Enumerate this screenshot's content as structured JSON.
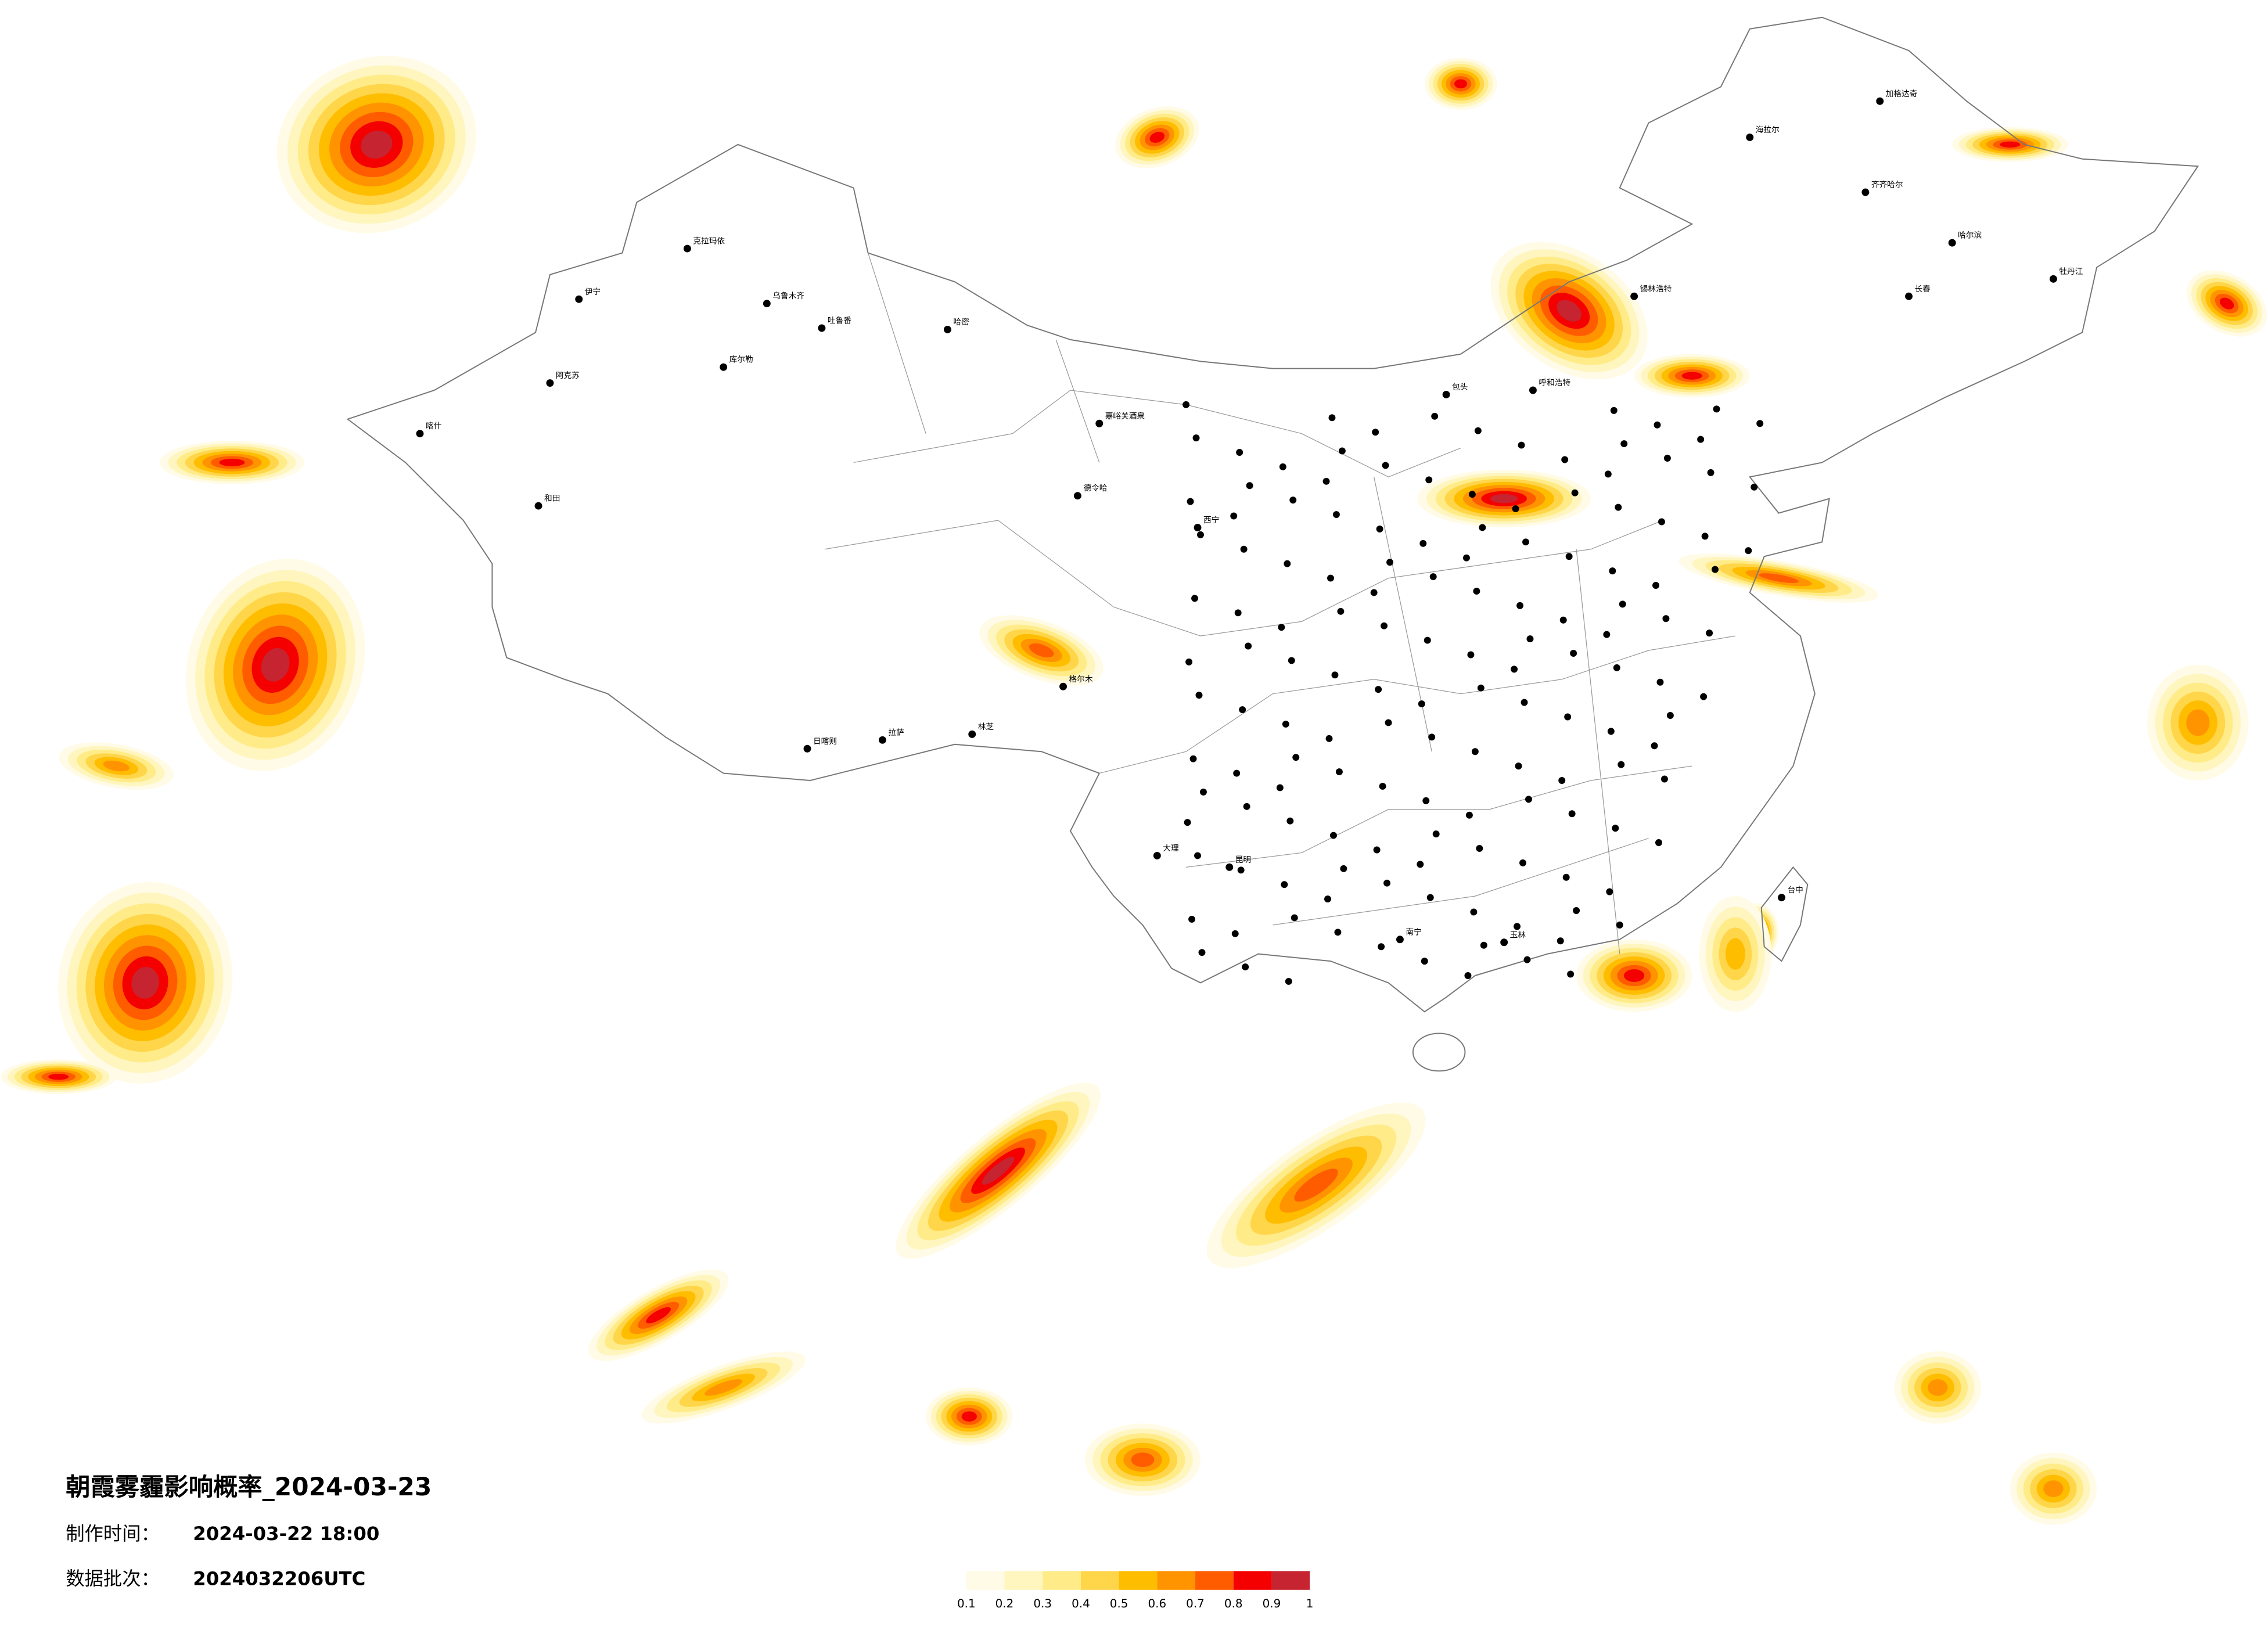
{
  "header": {
    "title": "朝霞雾霾影响概率_2024-03-23",
    "make_time_label": "制作时间：",
    "make_time": "2024-03-22 18:00",
    "batch_label": "数据批次：",
    "batch": "2024032206UTC"
  },
  "legend": {
    "ticks": [
      0.1,
      0.2,
      0.3,
      0.4,
      0.5,
      0.6,
      0.7,
      0.8,
      0.9,
      1
    ],
    "colors": [
      "#fffbe6",
      "#fff5bf",
      "#ffec88",
      "#ffd54a",
      "#ffbd00",
      "#ff9400",
      "#ff5c00",
      "#f40000",
      "#c62430"
    ]
  },
  "map": {
    "cities": [
      "克拉玛依",
      "乌鲁木齐",
      "伊宁",
      "库尔勒",
      "阿克苏",
      "和田",
      "喀什",
      "哈密",
      "吐鲁番",
      "拉萨",
      "日喀则",
      "林芝",
      "格尔木",
      "德令哈",
      "嘉峪关酒泉",
      "西宁",
      "呼和浩特",
      "包头",
      "锡林浩特",
      "海拉尔",
      "加格达奇",
      "齐齐哈尔",
      "哈尔滨",
      "长春",
      "牡丹江",
      "台中",
      "南宁",
      "昆明",
      "大理",
      "玉林"
    ]
  }
}
